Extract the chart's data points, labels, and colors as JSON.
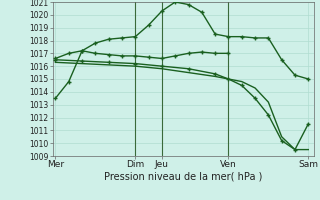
{
  "background_color": "#cff0e8",
  "grid_color": "#b0ddd0",
  "line_color": "#1a6020",
  "ylabel_min": 1009,
  "ylabel_max": 1021,
  "xlabel": "Pression niveau de la mer( hPa )",
  "series": [
    {
      "name": "line1_main",
      "x": [
        0,
        0.5,
        1.0,
        1.5,
        2.0,
        2.5,
        3.0,
        3.5,
        4.0,
        4.5,
        5.0,
        5.5,
        6.0,
        6.5,
        7.0,
        7.5,
        8.0,
        8.5,
        9.0,
        9.5
      ],
      "y": [
        1013.5,
        1014.8,
        1017.2,
        1017.8,
        1018.1,
        1018.2,
        1018.3,
        1019.2,
        1020.3,
        1021.0,
        1020.8,
        1020.2,
        1018.5,
        1018.3,
        1018.3,
        1018.2,
        1018.2,
        1016.5,
        1015.3,
        1015.0
      ],
      "has_markers": true
    },
    {
      "name": "line2_flat",
      "x": [
        0,
        0.5,
        1.0,
        1.5,
        2.0,
        2.5,
        3.0,
        3.5,
        4.0,
        4.5,
        5.0,
        5.5,
        6.0,
        6.5
      ],
      "y": [
        1016.6,
        1017.0,
        1017.2,
        1017.0,
        1016.9,
        1016.8,
        1016.8,
        1016.7,
        1016.6,
        1016.8,
        1017.0,
        1017.1,
        1017.0,
        1017.0
      ],
      "has_markers": true
    },
    {
      "name": "line3_decline",
      "x": [
        0,
        1.0,
        2.0,
        3.0,
        4.0,
        5.0,
        6.0,
        6.5,
        7.0,
        7.5,
        8.0,
        8.5,
        9.0,
        9.5
      ],
      "y": [
        1016.3,
        1016.2,
        1016.1,
        1016.0,
        1015.8,
        1015.5,
        1015.2,
        1015.0,
        1014.8,
        1014.3,
        1013.2,
        1010.5,
        1009.5,
        1009.5
      ],
      "has_markers": false
    },
    {
      "name": "line4_bottom",
      "x": [
        0,
        1.0,
        2.0,
        3.0,
        4.0,
        5.0,
        6.0,
        6.5,
        7.0,
        7.5,
        8.0,
        8.5,
        9.0,
        9.5
      ],
      "y": [
        1016.5,
        1016.4,
        1016.3,
        1016.2,
        1016.0,
        1015.8,
        1015.4,
        1015.0,
        1014.5,
        1013.5,
        1012.2,
        1010.2,
        1009.5,
        1011.5
      ],
      "has_markers": true
    }
  ],
  "xtick_positions": [
    0,
    3.0,
    4.0,
    6.5,
    9.5
  ],
  "xtick_labels": [
    "Mer",
    "Dim",
    "Jeu",
    "Ven",
    "Sam"
  ],
  "vline_positions": [
    3.0,
    4.0,
    6.5
  ],
  "xlim": [
    -0.1,
    9.7
  ],
  "figsize": [
    3.2,
    2.0
  ],
  "dpi": 100
}
